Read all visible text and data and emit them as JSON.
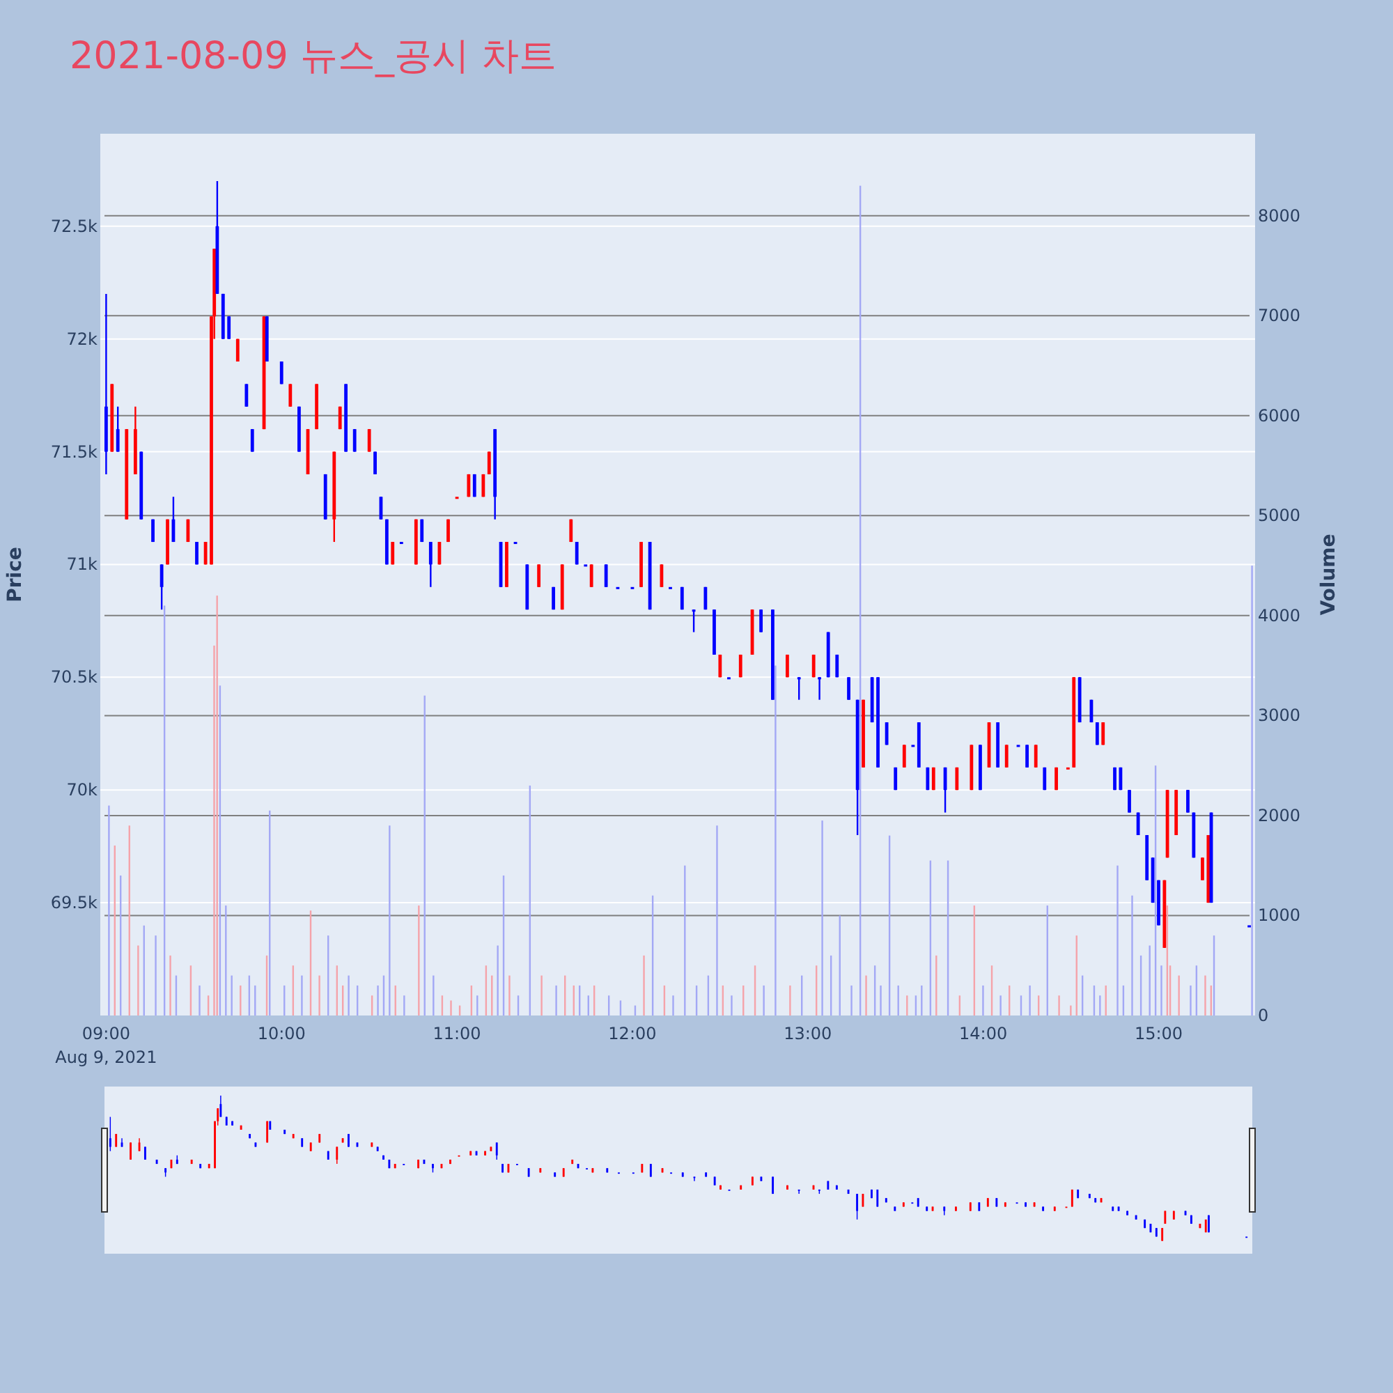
{
  "chart_data": {
    "type": "candlestick",
    "title": "2021-08-09 뉴스_공시 차트",
    "ylabel": "Price",
    "y2label": "Volume",
    "grid": "y",
    "xlim": [
      "2021-08-09T08:58",
      "2021-08-09T15:33"
    ],
    "xticks": [
      {
        "value": "2021-08-09T09:00",
        "label": "09:00\nAug 9, 2021"
      },
      {
        "value": "2021-08-09T10:00",
        "label": "10:00"
      },
      {
        "value": "2021-08-09T11:00",
        "label": "11:00"
      },
      {
        "value": "2021-08-09T12:00",
        "label": "12:00"
      },
      {
        "value": "2021-08-09T13:00",
        "label": "13:00"
      },
      {
        "value": "2021-08-09T14:00",
        "label": "14:00"
      },
      {
        "value": "2021-08-09T15:00",
        "label": "15:00"
      }
    ],
    "ylim": [
      69000,
      72910
    ],
    "yticks": [
      {
        "value": 69500,
        "label": "69.5k"
      },
      {
        "value": 70000,
        "label": "70k"
      },
      {
        "value": 70500,
        "label": "70.5k"
      },
      {
        "value": 71000,
        "label": "71k"
      },
      {
        "value": 71500,
        "label": "71.5k"
      },
      {
        "value": 72000,
        "label": "72k"
      },
      {
        "value": 72500,
        "label": "72.5k"
      }
    ],
    "y2lim": [
      0,
      8820
    ],
    "y2ticks": [
      0,
      1000,
      2000,
      3000,
      4000,
      5000,
      6000,
      7000,
      8000
    ],
    "x": [
      "2021-08-09T09:00",
      "2021-08-09T09:02",
      "2021-08-09T09:04",
      "2021-08-09T09:07",
      "2021-08-09T09:10",
      "2021-08-09T09:12",
      "2021-08-09T09:16",
      "2021-08-09T09:19",
      "2021-08-09T09:21",
      "2021-08-09T09:23",
      "2021-08-09T09:28",
      "2021-08-09T09:31",
      "2021-08-09T09:34",
      "2021-08-09T09:36",
      "2021-08-09T09:37",
      "2021-08-09T09:38",
      "2021-08-09T09:40",
      "2021-08-09T09:42",
      "2021-08-09T09:45",
      "2021-08-09T09:48",
      "2021-08-09T09:50",
      "2021-08-09T09:54",
      "2021-08-09T09:55",
      "2021-08-09T10:00",
      "2021-08-09T10:03",
      "2021-08-09T10:06",
      "2021-08-09T10:09",
      "2021-08-09T10:12",
      "2021-08-09T10:15",
      "2021-08-09T10:18",
      "2021-08-09T10:20",
      "2021-08-09T10:22",
      "2021-08-09T10:25",
      "2021-08-09T10:30",
      "2021-08-09T10:32",
      "2021-08-09T10:34",
      "2021-08-09T10:36",
      "2021-08-09T10:38",
      "2021-08-09T10:41",
      "2021-08-09T10:46",
      "2021-08-09T10:48",
      "2021-08-09T10:51",
      "2021-08-09T10:54",
      "2021-08-09T10:57",
      "2021-08-09T11:00",
      "2021-08-09T11:04",
      "2021-08-09T11:06",
      "2021-08-09T11:09",
      "2021-08-09T11:11",
      "2021-08-09T11:13",
      "2021-08-09T11:15",
      "2021-08-09T11:17",
      "2021-08-09T11:20",
      "2021-08-09T11:24",
      "2021-08-09T11:28",
      "2021-08-09T11:33",
      "2021-08-09T11:36",
      "2021-08-09T11:39",
      "2021-08-09T11:41",
      "2021-08-09T11:44",
      "2021-08-09T11:46",
      "2021-08-09T11:51",
      "2021-08-09T11:55",
      "2021-08-09T12:00",
      "2021-08-09T12:03",
      "2021-08-09T12:06",
      "2021-08-09T12:10",
      "2021-08-09T12:13",
      "2021-08-09T12:17",
      "2021-08-09T12:21",
      "2021-08-09T12:25",
      "2021-08-09T12:28",
      "2021-08-09T12:30",
      "2021-08-09T12:33",
      "2021-08-09T12:37",
      "2021-08-09T12:41",
      "2021-08-09T12:44",
      "2021-08-09T12:48",
      "2021-08-09T12:53",
      "2021-08-09T12:57",
      "2021-08-09T13:02",
      "2021-08-09T13:04",
      "2021-08-09T13:07",
      "2021-08-09T13:10",
      "2021-08-09T13:14",
      "2021-08-09T13:17",
      "2021-08-09T13:19",
      "2021-08-09T13:22",
      "2021-08-09T13:24",
      "2021-08-09T13:27",
      "2021-08-09T13:30",
      "2021-08-09T13:33",
      "2021-08-09T13:36",
      "2021-08-09T13:38",
      "2021-08-09T13:41",
      "2021-08-09T13:43",
      "2021-08-09T13:47",
      "2021-08-09T13:51",
      "2021-08-09T13:56",
      "2021-08-09T13:59",
      "2021-08-09T14:02",
      "2021-08-09T14:05",
      "2021-08-09T14:08",
      "2021-08-09T14:12",
      "2021-08-09T14:15",
      "2021-08-09T14:18",
      "2021-08-09T14:21",
      "2021-08-09T14:25",
      "2021-08-09T14:29",
      "2021-08-09T14:31",
      "2021-08-09T14:33",
      "2021-08-09T14:37",
      "2021-08-09T14:39",
      "2021-08-09T14:41",
      "2021-08-09T14:45",
      "2021-08-09T14:47",
      "2021-08-09T14:50",
      "2021-08-09T14:53",
      "2021-08-09T14:56",
      "2021-08-09T14:58",
      "2021-08-09T15:00",
      "2021-08-09T15:02",
      "2021-08-09T15:03",
      "2021-08-09T15:06",
      "2021-08-09T15:10",
      "2021-08-09T15:12",
      "2021-08-09T15:15",
      "2021-08-09T15:17",
      "2021-08-09T15:18",
      "2021-08-09T15:31"
    ],
    "ohlc": [
      [
        71700,
        72200,
        71400,
        71500
      ],
      [
        71500,
        71800,
        71500,
        71800
      ],
      [
        71600,
        71700,
        71500,
        71500
      ],
      [
        71200,
        71600,
        71200,
        71600
      ],
      [
        71400,
        71700,
        71400,
        71600
      ],
      [
        71500,
        71500,
        71200,
        71200
      ],
      [
        71200,
        71200,
        71100,
        71100
      ],
      [
        71000,
        71000,
        70800,
        70900
      ],
      [
        71000,
        71200,
        71000,
        71200
      ],
      [
        71200,
        71300,
        71100,
        71100
      ],
      [
        71100,
        71200,
        71100,
        71200
      ],
      [
        71100,
        71100,
        71000,
        71000
      ],
      [
        71000,
        71100,
        71000,
        71100
      ],
      [
        71000,
        72100,
        71000,
        72100
      ],
      [
        72100,
        72400,
        72000,
        72400
      ],
      [
        72500,
        72700,
        72200,
        72200
      ],
      [
        72200,
        72200,
        72000,
        72000
      ],
      [
        72100,
        72100,
        72000,
        72000
      ],
      [
        71900,
        72000,
        71900,
        72000
      ],
      [
        71800,
        71800,
        71700,
        71700
      ],
      [
        71600,
        71600,
        71500,
        71500
      ],
      [
        71600,
        72100,
        71600,
        72100
      ],
      [
        72100,
        72100,
        71900,
        71900
      ],
      [
        71900,
        71900,
        71800,
        71800
      ],
      [
        71700,
        71800,
        71700,
        71800
      ],
      [
        71700,
        71700,
        71500,
        71500
      ],
      [
        71400,
        71600,
        71400,
        71600
      ],
      [
        71600,
        71800,
        71600,
        71800
      ],
      [
        71400,
        71400,
        71200,
        71200
      ],
      [
        71200,
        71500,
        71100,
        71500
      ],
      [
        71600,
        71700,
        71600,
        71700
      ],
      [
        71800,
        71800,
        71500,
        71500
      ],
      [
        71600,
        71600,
        71500,
        71500
      ],
      [
        71500,
        71600,
        71500,
        71600
      ],
      [
        71500,
        71500,
        71400,
        71400
      ],
      [
        71300,
        71300,
        71200,
        71200
      ],
      [
        71200,
        71200,
        71000,
        71000
      ],
      [
        71000,
        71100,
        71000,
        71100
      ],
      [
        71100,
        71100,
        71100,
        71100
      ],
      [
        71000,
        71200,
        71000,
        71200
      ],
      [
        71200,
        71200,
        71100,
        71100
      ],
      [
        71100,
        71100,
        70900,
        71000
      ],
      [
        71000,
        71100,
        71000,
        71100
      ],
      [
        71100,
        71200,
        71100,
        71200
      ],
      [
        71300,
        71300,
        71300,
        71300
      ],
      [
        71300,
        71400,
        71300,
        71400
      ],
      [
        71400,
        71400,
        71300,
        71300
      ],
      [
        71300,
        71400,
        71300,
        71400
      ],
      [
        71400,
        71500,
        71400,
        71500
      ],
      [
        71600,
        71600,
        71200,
        71300
      ],
      [
        71100,
        71100,
        70900,
        70900
      ],
      [
        70900,
        71100,
        70900,
        71100
      ],
      [
        71100,
        71100,
        71100,
        71100
      ],
      [
        71000,
        71000,
        70800,
        70800
      ],
      [
        70900,
        71000,
        70900,
        71000
      ],
      [
        70900,
        70900,
        70800,
        70800
      ],
      [
        70800,
        71000,
        70800,
        71000
      ],
      [
        71100,
        71200,
        71100,
        71200
      ],
      [
        71100,
        71100,
        71000,
        71000
      ],
      [
        71000,
        71000,
        71000,
        71000
      ],
      [
        70900,
        71000,
        70900,
        71000
      ],
      [
        71000,
        71000,
        70900,
        70900
      ],
      [
        70900,
        70900,
        70900,
        70900
      ],
      [
        70900,
        70900,
        70900,
        70900
      ],
      [
        70900,
        71100,
        70900,
        71100
      ],
      [
        71100,
        71100,
        70800,
        70800
      ],
      [
        70900,
        71000,
        70900,
        71000
      ],
      [
        70900,
        70900,
        70900,
        70900
      ],
      [
        70900,
        70900,
        70800,
        70800
      ],
      [
        70800,
        70800,
        70700,
        70800
      ],
      [
        70900,
        70900,
        70800,
        70800
      ],
      [
        70800,
        70800,
        70600,
        70600
      ],
      [
        70500,
        70600,
        70500,
        70600
      ],
      [
        70500,
        70500,
        70500,
        70500
      ],
      [
        70500,
        70600,
        70500,
        70600
      ],
      [
        70600,
        70800,
        70600,
        70800
      ],
      [
        70800,
        70800,
        70700,
        70700
      ],
      [
        70800,
        70800,
        70400,
        70400
      ],
      [
        70500,
        70600,
        70500,
        70600
      ],
      [
        70500,
        70500,
        70400,
        70500
      ],
      [
        70500,
        70600,
        70500,
        70600
      ],
      [
        70500,
        70500,
        70400,
        70500
      ],
      [
        70700,
        70700,
        70500,
        70500
      ],
      [
        70600,
        70600,
        70500,
        70500
      ],
      [
        70500,
        70500,
        70400,
        70400
      ],
      [
        70400,
        70400,
        69800,
        70000
      ],
      [
        70100,
        70400,
        70100,
        70400
      ],
      [
        70500,
        70500,
        70300,
        70300
      ],
      [
        70500,
        70500,
        70100,
        70100
      ],
      [
        70300,
        70300,
        70200,
        70200
      ],
      [
        70100,
        70100,
        70000,
        70000
      ],
      [
        70100,
        70200,
        70100,
        70200
      ],
      [
        70200,
        70200,
        70200,
        70200
      ],
      [
        70300,
        70300,
        70100,
        70100
      ],
      [
        70100,
        70100,
        70000,
        70000
      ],
      [
        70000,
        70100,
        70000,
        70100
      ],
      [
        70100,
        70100,
        69900,
        70000
      ],
      [
        70000,
        70100,
        70000,
        70100
      ],
      [
        70000,
        70200,
        70000,
        70200
      ],
      [
        70200,
        70200,
        70000,
        70000
      ],
      [
        70100,
        70300,
        70100,
        70300
      ],
      [
        70300,
        70300,
        70100,
        70100
      ],
      [
        70100,
        70200,
        70100,
        70200
      ],
      [
        70200,
        70200,
        70200,
        70200
      ],
      [
        70200,
        70200,
        70100,
        70100
      ],
      [
        70100,
        70200,
        70100,
        70200
      ],
      [
        70100,
        70100,
        70000,
        70000
      ],
      [
        70000,
        70100,
        70000,
        70100
      ],
      [
        70100,
        70100,
        70100,
        70100
      ],
      [
        70100,
        70500,
        70100,
        70500
      ],
      [
        70500,
        70500,
        70300,
        70300
      ],
      [
        70400,
        70400,
        70300,
        70300
      ],
      [
        70300,
        70300,
        70200,
        70200
      ],
      [
        70200,
        70300,
        70200,
        70300
      ],
      [
        70100,
        70100,
        70000,
        70000
      ],
      [
        70100,
        70100,
        70000,
        70000
      ],
      [
        70000,
        70000,
        69900,
        69900
      ],
      [
        69900,
        69900,
        69800,
        69800
      ],
      [
        69800,
        69800,
        69600,
        69600
      ],
      [
        69700,
        69700,
        69500,
        69500
      ],
      [
        69600,
        69600,
        69400,
        69400
      ],
      [
        69300,
        69600,
        69300,
        69600
      ],
      [
        69700,
        70000,
        69700,
        70000
      ],
      [
        69800,
        70000,
        69800,
        70000
      ],
      [
        70000,
        70000,
        69900,
        69900
      ],
      [
        69900,
        69900,
        69700,
        69700
      ],
      [
        69600,
        69700,
        69600,
        69700
      ],
      [
        69500,
        69800,
        69500,
        69800
      ],
      [
        69900,
        69900,
        69500,
        69500
      ],
      [
        69400,
        69400,
        69400,
        69400
      ]
    ],
    "colors": [
      "#0000ff",
      "#ff0000",
      "#0000ff",
      "#ff0000",
      "#ff0000",
      "#0000ff",
      "#0000ff",
      "#0000ff",
      "#ff0000",
      "#0000ff",
      "#ff0000",
      "#0000ff",
      "#ff0000",
      "#ff0000",
      "#ff0000",
      "#0000ff",
      "#0000ff",
      "#0000ff",
      "#ff0000",
      "#0000ff",
      "#0000ff",
      "#ff0000",
      "#0000ff",
      "#0000ff",
      "#ff0000",
      "#0000ff",
      "#ff0000",
      "#ff0000",
      "#0000ff",
      "#ff0000",
      "#ff0000",
      "#0000ff",
      "#0000ff",
      "#ff0000",
      "#0000ff",
      "#0000ff",
      "#0000ff",
      "#ff0000",
      "#0000ff",
      "#ff0000",
      "#0000ff",
      "#0000ff",
      "#ff0000",
      "#ff0000",
      "#ff0000",
      "#ff0000",
      "#0000ff",
      "#ff0000",
      "#ff0000",
      "#0000ff",
      "#0000ff",
      "#ff0000",
      "#0000ff",
      "#0000ff",
      "#ff0000",
      "#0000ff",
      "#ff0000",
      "#ff0000",
      "#0000ff",
      "#0000ff",
      "#ff0000",
      "#0000ff",
      "#0000ff",
      "#0000ff",
      "#ff0000",
      "#0000ff",
      "#ff0000",
      "#0000ff",
      "#0000ff",
      "#0000ff",
      "#0000ff",
      "#0000ff",
      "#ff0000",
      "#0000ff",
      "#ff0000",
      "#ff0000",
      "#0000ff",
      "#0000ff",
      "#ff0000",
      "#0000ff",
      "#ff0000",
      "#0000ff",
      "#0000ff",
      "#0000ff",
      "#0000ff",
      "#0000ff",
      "#ff0000",
      "#0000ff",
      "#0000ff",
      "#0000ff",
      "#0000ff",
      "#ff0000",
      "#0000ff",
      "#0000ff",
      "#0000ff",
      "#ff0000",
      "#0000ff",
      "#ff0000",
      "#ff0000",
      "#0000ff",
      "#ff0000",
      "#0000ff",
      "#ff0000",
      "#0000ff",
      "#0000ff",
      "#ff0000",
      "#0000ff",
      "#ff0000",
      "#ff0000",
      "#ff0000",
      "#0000ff",
      "#0000ff",
      "#0000ff",
      "#ff0000",
      "#0000ff",
      "#0000ff",
      "#0000ff",
      "#0000ff",
      "#0000ff",
      "#0000ff",
      "#0000ff",
      "#ff0000",
      "#ff0000",
      "#ff0000",
      "#0000ff",
      "#0000ff",
      "#ff0000",
      "#ff0000",
      "#0000ff",
      "#0000ff"
    ],
    "series": [
      {
        "type": "bar",
        "axis": "y2",
        "values": [
          2100,
          1700,
          1400,
          1900,
          700,
          900,
          800,
          4100,
          600,
          400,
          500,
          300,
          200,
          3700,
          4200,
          3300,
          1100,
          400,
          300,
          400,
          300,
          600,
          2050,
          300,
          500,
          400,
          1050,
          400,
          800,
          500,
          300,
          400,
          300,
          200,
          300,
          400,
          1900,
          300,
          200,
          1100,
          3200,
          400,
          200,
          150,
          100,
          300,
          200,
          500,
          400,
          700,
          1400,
          400,
          200,
          2300,
          400,
          300,
          400,
          300,
          300,
          200,
          300,
          200,
          150,
          100,
          600,
          1200,
          300,
          200,
          1500,
          300,
          400,
          1900,
          300,
          200,
          300,
          500,
          300,
          3500,
          300,
          400,
          500,
          1950,
          600,
          1000,
          300,
          8300,
          400,
          500,
          300,
          1800,
          300,
          200,
          200,
          300,
          1550,
          600,
          1550,
          200,
          1100,
          300,
          500,
          200,
          300,
          200,
          300,
          200,
          1100,
          200,
          100,
          800,
          400,
          300,
          200,
          300,
          1500,
          300,
          1200,
          600,
          700,
          2500,
          500,
          1100,
          500,
          400,
          300,
          500,
          400,
          300,
          800,
          4500
        ],
        "colors": [
          "#a3a8f5",
          "#f5a3aa",
          "#a3a8f5",
          "#f5a3aa",
          "#f5a3aa",
          "#a3a8f5",
          "#a3a8f5",
          "#a3a8f5",
          "#f5a3aa",
          "#a3a8f5",
          "#f5a3aa",
          "#a3a8f5",
          "#f5a3aa",
          "#f5a3aa",
          "#f5a3aa",
          "#a3a8f5",
          "#a3a8f5",
          "#a3a8f5",
          "#f5a3aa",
          "#a3a8f5",
          "#a3a8f5",
          "#f5a3aa",
          "#a3a8f5",
          "#a3a8f5",
          "#f5a3aa",
          "#a3a8f5",
          "#f5a3aa",
          "#f5a3aa",
          "#a3a8f5",
          "#f5a3aa",
          "#f5a3aa",
          "#a3a8f5",
          "#a3a8f5",
          "#f5a3aa",
          "#a3a8f5",
          "#a3a8f5",
          "#a3a8f5",
          "#f5a3aa",
          "#a3a8f5",
          "#f5a3aa",
          "#a3a8f5",
          "#a3a8f5",
          "#f5a3aa",
          "#f5a3aa",
          "#f5a3aa",
          "#f5a3aa",
          "#a3a8f5",
          "#f5a3aa",
          "#f5a3aa",
          "#a3a8f5",
          "#a3a8f5",
          "#f5a3aa",
          "#a3a8f5",
          "#a3a8f5",
          "#f5a3aa",
          "#a3a8f5",
          "#f5a3aa",
          "#f5a3aa",
          "#a3a8f5",
          "#a3a8f5",
          "#f5a3aa",
          "#a3a8f5",
          "#a3a8f5",
          "#a3a8f5",
          "#f5a3aa",
          "#a3a8f5",
          "#f5a3aa",
          "#a3a8f5",
          "#a3a8f5",
          "#a3a8f5",
          "#a3a8f5",
          "#a3a8f5",
          "#f5a3aa",
          "#a3a8f5",
          "#f5a3aa",
          "#f5a3aa",
          "#a3a8f5",
          "#a3a8f5",
          "#f5a3aa",
          "#a3a8f5",
          "#f5a3aa",
          "#a3a8f5",
          "#a3a8f5",
          "#a3a8f5",
          "#a3a8f5",
          "#a3a8f5",
          "#f5a3aa",
          "#a3a8f5",
          "#a3a8f5",
          "#a3a8f5",
          "#a3a8f5",
          "#f5a3aa",
          "#a3a8f5",
          "#a3a8f5",
          "#a3a8f5",
          "#f5a3aa",
          "#a3a8f5",
          "#f5a3aa",
          "#f5a3aa",
          "#a3a8f5",
          "#f5a3aa",
          "#a3a8f5",
          "#f5a3aa",
          "#a3a8f5",
          "#a3a8f5",
          "#f5a3aa",
          "#a3a8f5",
          "#f5a3aa",
          "#f5a3aa",
          "#f5a3aa",
          "#a3a8f5",
          "#a3a8f5",
          "#a3a8f5",
          "#f5a3aa",
          "#a3a8f5",
          "#a3a8f5",
          "#a3a8f5",
          "#a3a8f5",
          "#a3a8f5",
          "#a3a8f5",
          "#a3a8f5",
          "#f5a3aa",
          "#f5a3aa",
          "#f5a3aa",
          "#a3a8f5",
          "#a3a8f5",
          "#f5a3aa",
          "#f5a3aa",
          "#a3a8f5",
          "#a3a8f5"
        ]
      }
    ]
  }
}
